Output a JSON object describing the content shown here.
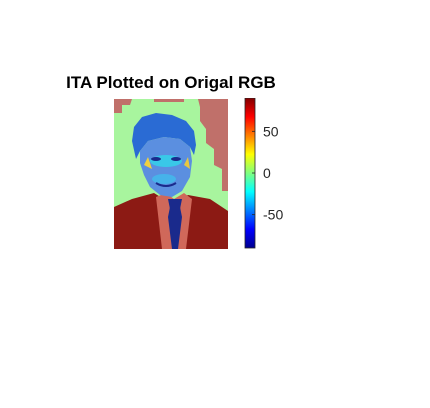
{
  "chart_data": {
    "type": "heatmap",
    "title": "ITA Plotted on Origal RGB",
    "xlabel": "",
    "ylabel": "",
    "colormap": "jet",
    "clim": [
      -90,
      90
    ],
    "colorbar_ticks": [
      {
        "value": 50,
        "label": "50"
      },
      {
        "value": 0,
        "label": "0"
      },
      {
        "value": -50,
        "label": "-50"
      }
    ],
    "regions": [
      {
        "name": "background",
        "value": 8,
        "color": "#a8f59e"
      },
      {
        "name": "background-edges",
        "value": 72,
        "color": "#c0706a"
      },
      {
        "name": "hair",
        "value": -40,
        "color": "#2a6bd4"
      },
      {
        "name": "face",
        "value": -30,
        "color": "#5b8fe0"
      },
      {
        "name": "jacket",
        "value": 85,
        "color": "#8c1a14"
      },
      {
        "name": "shirt",
        "value": 75,
        "color": "#d0685a"
      },
      {
        "name": "tie",
        "value": -70,
        "color": "#1a2a8c"
      }
    ]
  }
}
